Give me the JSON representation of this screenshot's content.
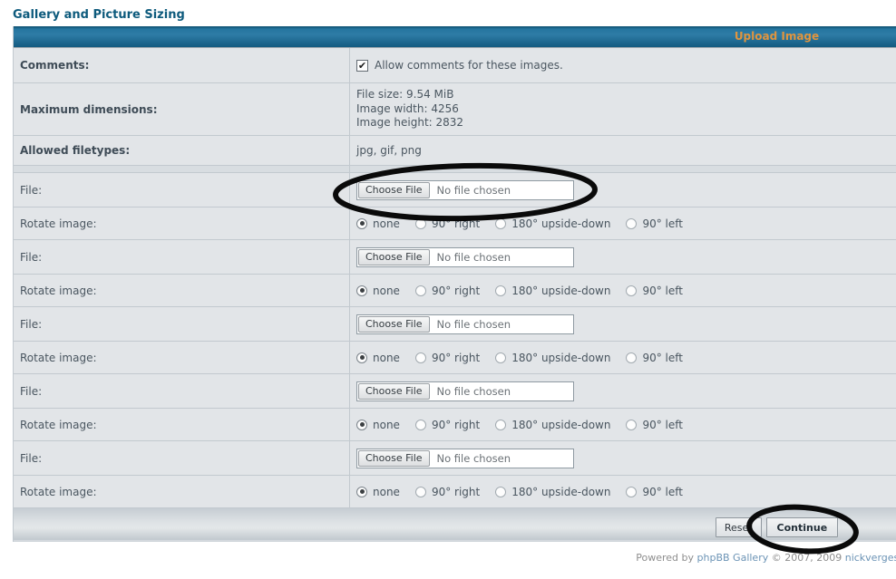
{
  "title": "Gallery and Picture Sizing",
  "panel": {
    "header": "Upload Image"
  },
  "info": {
    "comments": {
      "label": "Comments:",
      "checkbox_checked": true,
      "checkmark": "✔",
      "text": "Allow comments for these images."
    },
    "max_dimensions": {
      "label": "Maximum dimensions:",
      "lines": [
        "File size: 9.54 MiB",
        "Image width: 4256",
        "Image height: 2832"
      ]
    },
    "filetypes": {
      "label": "Allowed filetypes:",
      "value": "jpg, gif, png"
    }
  },
  "upload": {
    "row_count": 5,
    "file_label": "File:",
    "choose_button": "Choose File",
    "no_file_text": "No file chosen",
    "rotate_label": "Rotate image:",
    "rotate_options": [
      "none",
      "90° right",
      "180° upside-down",
      "90° left"
    ],
    "selected_option_index": 0
  },
  "actions": {
    "reset": "Reset",
    "continue": "Continue"
  },
  "footer": {
    "powered_by": "Powered by",
    "gallery_link": "phpBB Gallery",
    "copyright": "© 2007, 2009",
    "author_link": "nickvergessen"
  },
  "annotations": {
    "circle_1": "hand-drawn ellipse around first file input",
    "circle_2": "hand-drawn ellipse around Continue button"
  },
  "colors": {
    "title": "#0d5a7c",
    "header_text": "#e0953f",
    "header_bg": "#2e7ca6",
    "row_bg": "#e2e5e8",
    "border": "#c2c9cf",
    "link": "#6b93b5",
    "annotation": "#0a0a0a"
  }
}
